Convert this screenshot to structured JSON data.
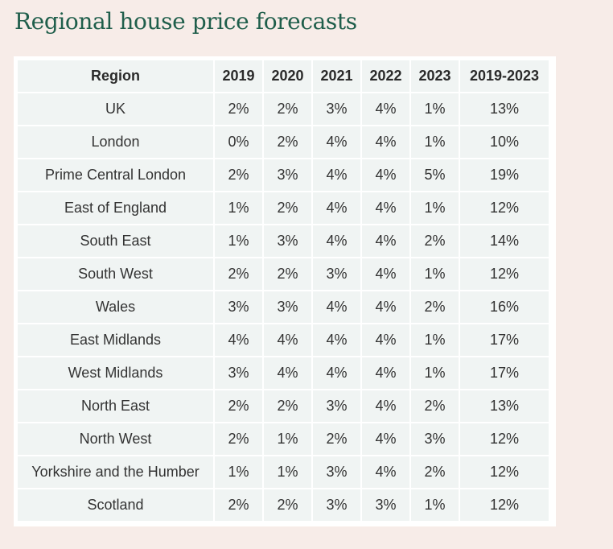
{
  "title": "Regional house price forecasts",
  "table": {
    "headers": [
      "Region",
      "2019",
      "2020",
      "2021",
      "2022",
      "2023",
      "2019-2023"
    ],
    "rows": [
      [
        "UK",
        "2%",
        "2%",
        "3%",
        "4%",
        "1%",
        "13%"
      ],
      [
        "London",
        "0%",
        "2%",
        "4%",
        "4%",
        "1%",
        "10%"
      ],
      [
        "Prime Central London",
        "2%",
        "3%",
        "4%",
        "4%",
        "5%",
        "19%"
      ],
      [
        "East of England",
        "1%",
        "2%",
        "4%",
        "4%",
        "1%",
        "12%"
      ],
      [
        "South East",
        "1%",
        "3%",
        "4%",
        "4%",
        "2%",
        "14%"
      ],
      [
        "South West",
        "2%",
        "2%",
        "3%",
        "4%",
        "1%",
        "12%"
      ],
      [
        "Wales",
        "3%",
        "3%",
        "4%",
        "4%",
        "2%",
        "16%"
      ],
      [
        "East Midlands",
        "4%",
        "4%",
        "4%",
        "4%",
        "1%",
        "17%"
      ],
      [
        "West Midlands",
        "3%",
        "4%",
        "4%",
        "4%",
        "1%",
        "17%"
      ],
      [
        "North East",
        "2%",
        "2%",
        "3%",
        "4%",
        "2%",
        "13%"
      ],
      [
        "North West",
        "2%",
        "1%",
        "2%",
        "4%",
        "3%",
        "12%"
      ],
      [
        "Yorkshire and the Humber",
        "1%",
        "1%",
        "3%",
        "4%",
        "2%",
        "12%"
      ],
      [
        "Scotland",
        "2%",
        "2%",
        "3%",
        "3%",
        "1%",
        "12%"
      ]
    ]
  },
  "colors": {
    "background": "#f7ece8",
    "title": "#1f5e4b",
    "table_frame": "#ffffff",
    "cell_background": "#f0f4f3",
    "text": "#333333"
  }
}
